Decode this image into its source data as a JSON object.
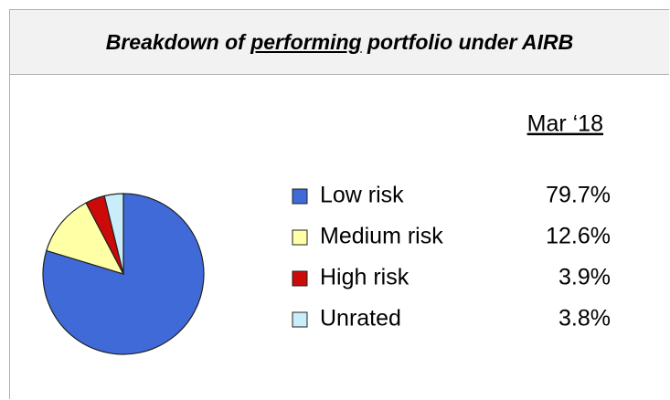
{
  "chart_data": {
    "type": "pie",
    "title": [
      "Breakdown of",
      "performing",
      "portfolio under AIRB"
    ],
    "subtitle": "Mar ‘18",
    "categories": [
      "Low risk",
      "Medium risk",
      "High risk",
      "Unrated"
    ],
    "values": [
      79.7,
      12.6,
      3.9,
      3.8
    ],
    "value_labels": [
      "79.7%",
      "12.6%",
      "3.9%",
      "3.8%"
    ],
    "colors": [
      "#3f6ad8",
      "#ffffa6",
      "#cc0a0a",
      "#c9eef9"
    ]
  }
}
